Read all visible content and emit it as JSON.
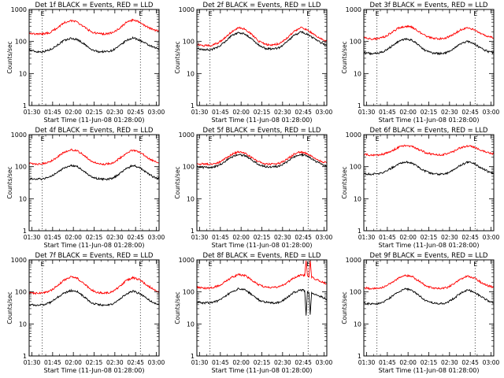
{
  "figure": {
    "x_tick_labels": [
      "01:30",
      "01:45",
      "02:00",
      "02:15",
      "02:30",
      "02:45",
      "03:00"
    ],
    "x_label": "Start Time (11-Jun-08 01:28:00)",
    "y_tick_labels": [
      "1",
      "10",
      "100",
      "1000"
    ],
    "y_label": "Counts/sec",
    "marker_labels": [
      "E",
      "E"
    ],
    "colors": {
      "events": "#000000",
      "lld": "#ff0000"
    }
  },
  "chart_data": [
    {
      "type": "line",
      "title": "Det 1f BLACK = Events, RED = LLD",
      "x_unit": "minutes since 01:28:00",
      "xlim": [
        0,
        94
      ],
      "ylim": [
        1,
        1000
      ],
      "yscale": "log",
      "x": [
        0,
        5,
        10,
        15,
        20,
        25,
        30,
        35,
        40,
        45,
        50,
        55,
        60,
        65,
        70,
        75,
        80,
        85,
        90,
        94
      ],
      "series": [
        {
          "name": "Events",
          "color": "#000000",
          "values": [
            55,
            48,
            48,
            55,
            75,
            105,
            125,
            115,
            82,
            55,
            48,
            48,
            52,
            70,
            105,
            130,
            110,
            82,
            65,
            58
          ]
        },
        {
          "name": "LLD",
          "color": "#ff0000",
          "values": [
            185,
            170,
            172,
            190,
            260,
            380,
            450,
            400,
            280,
            200,
            175,
            172,
            185,
            250,
            380,
            470,
            400,
            290,
            230,
            210
          ]
        }
      ],
      "vlines_x": [
        9.5,
        80.5
      ]
    },
    {
      "type": "line",
      "title": "Det 2f BLACK = Events, RED = LLD",
      "x_unit": "minutes since 01:28:00",
      "xlim": [
        0,
        94
      ],
      "ylim": [
        1,
        1000
      ],
      "yscale": "log",
      "x": [
        0,
        5,
        10,
        15,
        20,
        25,
        30,
        35,
        40,
        45,
        50,
        55,
        60,
        65,
        70,
        75,
        80,
        85,
        90,
        94
      ],
      "series": [
        {
          "name": "Events",
          "color": "#000000",
          "values": [
            60,
            55,
            55,
            65,
            95,
            150,
            190,
            170,
            115,
            75,
            60,
            58,
            65,
            95,
            150,
            200,
            170,
            120,
            90,
            75
          ]
        },
        {
          "name": "LLD",
          "color": "#ff0000",
          "values": [
            80,
            75,
            75,
            88,
            125,
            200,
            270,
            240,
            160,
            100,
            80,
            78,
            88,
            125,
            200,
            270,
            230,
            160,
            120,
            100
          ]
        }
      ],
      "vlines_x": [
        9.5,
        80.5
      ]
    },
    {
      "type": "line",
      "title": "Det 3f BLACK = Events, RED = LLD",
      "x_unit": "minutes since 01:28:00",
      "xlim": [
        0,
        94
      ],
      "ylim": [
        1,
        1000
      ],
      "yscale": "log",
      "x": [
        0,
        5,
        10,
        15,
        20,
        25,
        30,
        35,
        40,
        45,
        50,
        55,
        60,
        65,
        70,
        75,
        80,
        85,
        90,
        94
      ],
      "series": [
        {
          "name": "Events",
          "color": "#000000",
          "values": [
            45,
            42,
            43,
            50,
            70,
            100,
            120,
            110,
            75,
            50,
            43,
            42,
            45,
            60,
            85,
            100,
            85,
            60,
            48,
            45
          ]
        },
        {
          "name": "LLD",
          "color": "#ff0000",
          "values": [
            130,
            120,
            122,
            140,
            190,
            260,
            300,
            280,
            200,
            145,
            125,
            122,
            130,
            170,
            230,
            270,
            230,
            170,
            140,
            130
          ]
        }
      ],
      "vlines_x": [
        9.5,
        80.5
      ]
    },
    {
      "type": "line",
      "title": "Det 4f BLACK = Events, RED = LLD",
      "x_unit": "minutes since 01:28:00",
      "xlim": [
        0,
        94
      ],
      "ylim": [
        1,
        1000
      ],
      "yscale": "log",
      "x": [
        0,
        5,
        10,
        15,
        20,
        25,
        30,
        35,
        40,
        45,
        50,
        55,
        60,
        65,
        70,
        75,
        80,
        85,
        90,
        94
      ],
      "series": [
        {
          "name": "Events",
          "color": "#000000",
          "values": [
            42,
            40,
            42,
            48,
            65,
            90,
            110,
            100,
            70,
            48,
            42,
            40,
            43,
            58,
            85,
            110,
            95,
            65,
            48,
            42
          ]
        },
        {
          "name": "LLD",
          "color": "#ff0000",
          "values": [
            125,
            120,
            125,
            145,
            195,
            280,
            340,
            310,
            220,
            150,
            125,
            120,
            130,
            175,
            260,
            330,
            290,
            200,
            150,
            130
          ]
        }
      ],
      "vlines_x": [
        9.5,
        80.5
      ]
    },
    {
      "type": "line",
      "title": "Det 5f BLACK = Events, RED = LLD",
      "x_unit": "minutes since 01:28:00",
      "xlim": [
        0,
        94
      ],
      "ylim": [
        1,
        1000
      ],
      "yscale": "log",
      "x": [
        0,
        5,
        10,
        15,
        20,
        25,
        30,
        35,
        40,
        45,
        50,
        55,
        60,
        65,
        70,
        75,
        80,
        85,
        90,
        94
      ],
      "series": [
        {
          "name": "Events",
          "color": "#000000",
          "values": [
            100,
            95,
            95,
            105,
            140,
            200,
            240,
            220,
            160,
            115,
            100,
            98,
            105,
            140,
            200,
            240,
            215,
            155,
            120,
            105
          ]
        },
        {
          "name": "LLD",
          "color": "#ff0000",
          "values": [
            125,
            120,
            120,
            130,
            170,
            240,
            290,
            265,
            190,
            140,
            122,
            120,
            128,
            170,
            240,
            290,
            255,
            185,
            145,
            130
          ]
        }
      ],
      "vlines_x": [
        9.5,
        80.5
      ]
    },
    {
      "type": "line",
      "title": "Det 6f BLACK = Events, RED = LLD",
      "x_unit": "minutes since 01:28:00",
      "xlim": [
        0,
        94
      ],
      "ylim": [
        1,
        1000
      ],
      "yscale": "log",
      "x": [
        0,
        5,
        10,
        15,
        20,
        25,
        30,
        35,
        40,
        45,
        50,
        55,
        60,
        65,
        70,
        75,
        80,
        85,
        90,
        94
      ],
      "series": [
        {
          "name": "Events",
          "color": "#000000",
          "values": [
            60,
            58,
            60,
            68,
            90,
            120,
            140,
            130,
            95,
            70,
            60,
            58,
            62,
            80,
            110,
            140,
            125,
            90,
            70,
            62
          ]
        },
        {
          "name": "LLD",
          "color": "#ff0000",
          "values": [
            240,
            230,
            232,
            250,
            310,
            400,
            460,
            430,
            340,
            270,
            240,
            235,
            245,
            300,
            390,
            450,
            410,
            320,
            270,
            250
          ]
        }
      ],
      "vlines_x": [
        9.5,
        80.5
      ]
    },
    {
      "type": "line",
      "title": "Det 7f BLACK = Events, RED = LLD",
      "x_unit": "minutes since 01:28:00",
      "xlim": [
        0,
        94
      ],
      "ylim": [
        1,
        1000
      ],
      "yscale": "log",
      "x": [
        0,
        5,
        10,
        15,
        20,
        25,
        30,
        35,
        40,
        45,
        50,
        55,
        60,
        65,
        70,
        75,
        80,
        85,
        90,
        94
      ],
      "series": [
        {
          "name": "Events",
          "color": "#000000",
          "values": [
            40,
            38,
            40,
            46,
            65,
            90,
            110,
            100,
            70,
            45,
            40,
            38,
            42,
            58,
            85,
            105,
            90,
            62,
            45,
            40
          ]
        },
        {
          "name": "LLD",
          "color": "#ff0000",
          "values": [
            95,
            90,
            92,
            105,
            150,
            230,
            290,
            260,
            175,
            115,
            95,
            92,
            100,
            140,
            220,
            280,
            240,
            165,
            120,
            100
          ]
        }
      ],
      "vlines_x": [
        9.5,
        80.5
      ]
    },
    {
      "type": "line",
      "title": "Det 8f BLACK = Events, RED = LLD",
      "x_unit": "minutes since 01:28:00",
      "xlim": [
        0,
        94
      ],
      "ylim": [
        1,
        1000
      ],
      "yscale": "log",
      "x": [
        0,
        5,
        10,
        15,
        20,
        25,
        30,
        35,
        40,
        45,
        50,
        55,
        60,
        65,
        70,
        75,
        78,
        79,
        80,
        81,
        82,
        83,
        84,
        85,
        90,
        94
      ],
      "series": [
        {
          "name": "Events",
          "color": "#000000",
          "values": [
            48,
            45,
            46,
            52,
            70,
            100,
            125,
            115,
            80,
            55,
            47,
            45,
            48,
            65,
            95,
            115,
            110,
            18,
            105,
            100,
            20,
            95,
            90,
            85,
            70,
            60
          ]
        },
        {
          "name": "LLD",
          "color": "#ff0000",
          "values": [
            140,
            130,
            132,
            150,
            200,
            280,
            350,
            320,
            230,
            165,
            140,
            135,
            145,
            190,
            270,
            340,
            330,
            1000,
            310,
            300,
            1000,
            290,
            280,
            260,
            210,
            180
          ]
        }
      ],
      "vlines_x": [
        9.5,
        80.5
      ]
    },
    {
      "type": "line",
      "title": "Det 9f BLACK = Events, RED = LLD",
      "x_unit": "minutes since 01:28:00",
      "xlim": [
        0,
        94
      ],
      "ylim": [
        1,
        1000
      ],
      "yscale": "log",
      "x": [
        0,
        5,
        10,
        15,
        20,
        25,
        30,
        35,
        40,
        45,
        50,
        55,
        60,
        65,
        70,
        75,
        80,
        85,
        90,
        94
      ],
      "series": [
        {
          "name": "Events",
          "color": "#000000",
          "values": [
            45,
            42,
            43,
            50,
            70,
            100,
            125,
            112,
            78,
            52,
            45,
            43,
            46,
            62,
            90,
            115,
            100,
            70,
            52,
            46
          ]
        },
        {
          "name": "LLD",
          "color": "#ff0000",
          "values": [
            135,
            125,
            128,
            145,
            195,
            270,
            330,
            300,
            215,
            155,
            130,
            128,
            135,
            175,
            250,
            310,
            270,
            195,
            155,
            140
          ]
        }
      ],
      "vlines_x": [
        9.5,
        80.5
      ]
    }
  ]
}
